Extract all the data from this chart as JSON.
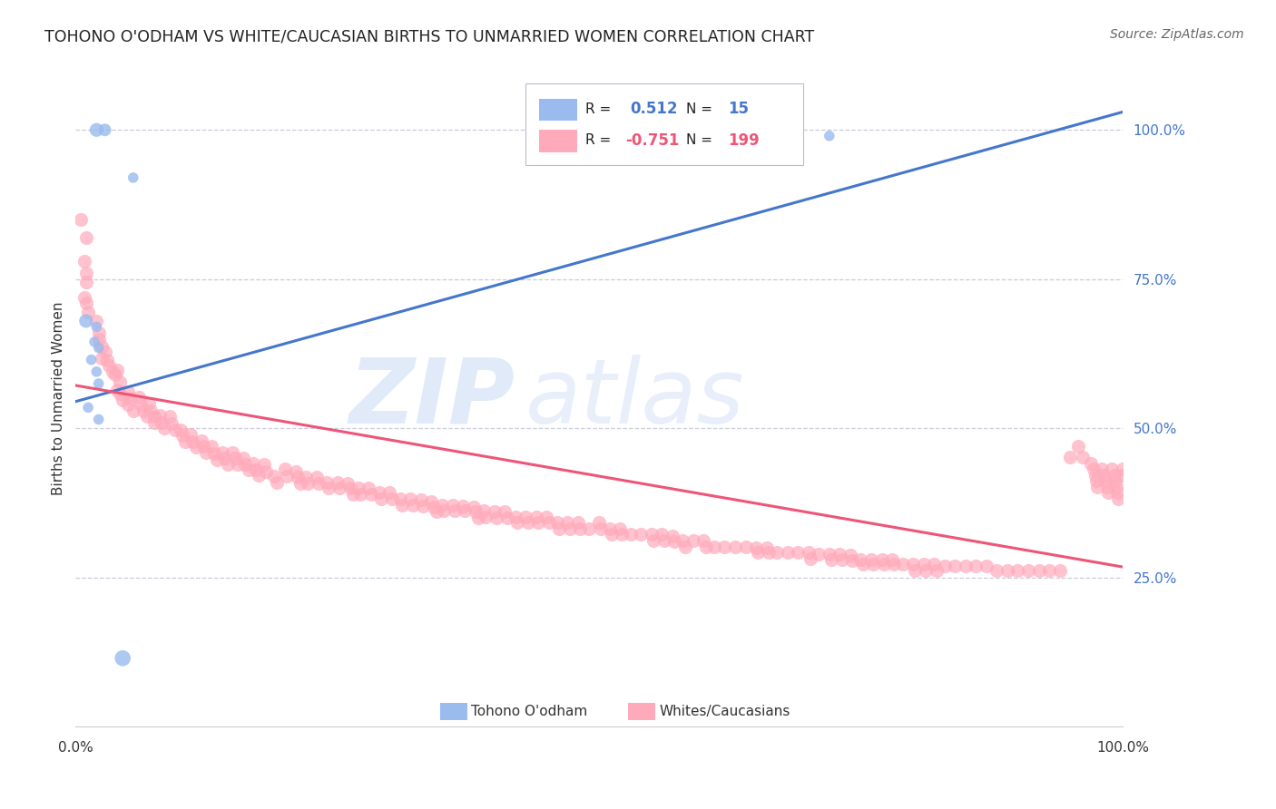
{
  "title": "TOHONO O'ODHAM VS WHITE/CAUCASIAN BIRTHS TO UNMARRIED WOMEN CORRELATION CHART",
  "source": "Source: ZipAtlas.com",
  "ylabel": "Births to Unmarried Women",
  "xlim": [
    0.0,
    1.0
  ],
  "ylim": [
    0.0,
    1.1
  ],
  "ytick_labels_right": [
    "25.0%",
    "50.0%",
    "75.0%",
    "100.0%"
  ],
  "ytick_positions_right": [
    0.25,
    0.5,
    0.75,
    1.0
  ],
  "blue_color": "#99BBEE",
  "pink_color": "#FFAABB",
  "blue_line_color": "#4477CC",
  "pink_line_color": "#EE5577",
  "watermark_zip": "ZIP",
  "watermark_atlas": "atlas",
  "background_color": "#FFFFFF",
  "grid_color": "#CCCCDD",
  "title_color": "#222222",
  "axis_label_color": "#333333",
  "right_tick_color": "#4477CC",
  "tohono_points": [
    [
      0.02,
      1.0
    ],
    [
      0.028,
      1.0
    ],
    [
      0.055,
      0.92
    ],
    [
      0.01,
      0.68
    ],
    [
      0.02,
      0.67
    ],
    [
      0.018,
      0.645
    ],
    [
      0.022,
      0.635
    ],
    [
      0.015,
      0.615
    ],
    [
      0.02,
      0.595
    ],
    [
      0.022,
      0.575
    ],
    [
      0.012,
      0.535
    ],
    [
      0.022,
      0.515
    ],
    [
      0.51,
      0.975
    ],
    [
      0.72,
      0.99
    ],
    [
      0.045,
      0.115
    ]
  ],
  "tohono_sizes": [
    120,
    100,
    70,
    120,
    70,
    70,
    70,
    70,
    70,
    70,
    70,
    70,
    70,
    70,
    160
  ],
  "white_points": [
    [
      0.005,
      0.85
    ],
    [
      0.01,
      0.82
    ],
    [
      0.008,
      0.78
    ],
    [
      0.01,
      0.76
    ],
    [
      0.01,
      0.745
    ],
    [
      0.008,
      0.72
    ],
    [
      0.01,
      0.71
    ],
    [
      0.012,
      0.695
    ],
    [
      0.02,
      0.68
    ],
    [
      0.022,
      0.66
    ],
    [
      0.022,
      0.65
    ],
    [
      0.025,
      0.638
    ],
    [
      0.028,
      0.628
    ],
    [
      0.025,
      0.618
    ],
    [
      0.03,
      0.615
    ],
    [
      0.032,
      0.605
    ],
    [
      0.035,
      0.595
    ],
    [
      0.038,
      0.59
    ],
    [
      0.04,
      0.598
    ],
    [
      0.042,
      0.578
    ],
    [
      0.04,
      0.565
    ],
    [
      0.042,
      0.558
    ],
    [
      0.045,
      0.548
    ],
    [
      0.05,
      0.562
    ],
    [
      0.052,
      0.55
    ],
    [
      0.05,
      0.54
    ],
    [
      0.055,
      0.53
    ],
    [
      0.06,
      0.552
    ],
    [
      0.062,
      0.54
    ],
    [
      0.065,
      0.53
    ],
    [
      0.068,
      0.52
    ],
    [
      0.07,
      0.542
    ],
    [
      0.072,
      0.53
    ],
    [
      0.075,
      0.52
    ],
    [
      0.075,
      0.51
    ],
    [
      0.08,
      0.522
    ],
    [
      0.082,
      0.51
    ],
    [
      0.085,
      0.5
    ],
    [
      0.09,
      0.52
    ],
    [
      0.092,
      0.508
    ],
    [
      0.095,
      0.498
    ],
    [
      0.1,
      0.498
    ],
    [
      0.102,
      0.488
    ],
    [
      0.105,
      0.478
    ],
    [
      0.11,
      0.49
    ],
    [
      0.112,
      0.478
    ],
    [
      0.115,
      0.468
    ],
    [
      0.12,
      0.48
    ],
    [
      0.122,
      0.47
    ],
    [
      0.125,
      0.46
    ],
    [
      0.13,
      0.47
    ],
    [
      0.132,
      0.458
    ],
    [
      0.135,
      0.448
    ],
    [
      0.14,
      0.46
    ],
    [
      0.142,
      0.45
    ],
    [
      0.145,
      0.44
    ],
    [
      0.15,
      0.46
    ],
    [
      0.152,
      0.45
    ],
    [
      0.155,
      0.44
    ],
    [
      0.16,
      0.45
    ],
    [
      0.162,
      0.44
    ],
    [
      0.165,
      0.43
    ],
    [
      0.17,
      0.442
    ],
    [
      0.172,
      0.43
    ],
    [
      0.175,
      0.422
    ],
    [
      0.18,
      0.44
    ],
    [
      0.182,
      0.428
    ],
    [
      0.19,
      0.42
    ],
    [
      0.192,
      0.41
    ],
    [
      0.2,
      0.432
    ],
    [
      0.202,
      0.42
    ],
    [
      0.21,
      0.428
    ],
    [
      0.212,
      0.418
    ],
    [
      0.215,
      0.408
    ],
    [
      0.22,
      0.418
    ],
    [
      0.222,
      0.408
    ],
    [
      0.23,
      0.418
    ],
    [
      0.232,
      0.408
    ],
    [
      0.24,
      0.41
    ],
    [
      0.242,
      0.4
    ],
    [
      0.25,
      0.41
    ],
    [
      0.252,
      0.4
    ],
    [
      0.26,
      0.408
    ],
    [
      0.262,
      0.4
    ],
    [
      0.265,
      0.39
    ],
    [
      0.27,
      0.4
    ],
    [
      0.272,
      0.39
    ],
    [
      0.28,
      0.4
    ],
    [
      0.282,
      0.39
    ],
    [
      0.29,
      0.392
    ],
    [
      0.292,
      0.382
    ],
    [
      0.3,
      0.392
    ],
    [
      0.302,
      0.382
    ],
    [
      0.31,
      0.382
    ],
    [
      0.312,
      0.372
    ],
    [
      0.32,
      0.382
    ],
    [
      0.322,
      0.372
    ],
    [
      0.33,
      0.38
    ],
    [
      0.332,
      0.37
    ],
    [
      0.34,
      0.378
    ],
    [
      0.342,
      0.368
    ],
    [
      0.345,
      0.36
    ],
    [
      0.35,
      0.372
    ],
    [
      0.352,
      0.362
    ],
    [
      0.36,
      0.372
    ],
    [
      0.362,
      0.362
    ],
    [
      0.37,
      0.37
    ],
    [
      0.372,
      0.362
    ],
    [
      0.38,
      0.368
    ],
    [
      0.382,
      0.36
    ],
    [
      0.385,
      0.35
    ],
    [
      0.39,
      0.362
    ],
    [
      0.392,
      0.352
    ],
    [
      0.4,
      0.36
    ],
    [
      0.402,
      0.35
    ],
    [
      0.41,
      0.36
    ],
    [
      0.412,
      0.35
    ],
    [
      0.42,
      0.352
    ],
    [
      0.422,
      0.342
    ],
    [
      0.43,
      0.352
    ],
    [
      0.432,
      0.342
    ],
    [
      0.44,
      0.352
    ],
    [
      0.442,
      0.342
    ],
    [
      0.45,
      0.352
    ],
    [
      0.452,
      0.342
    ],
    [
      0.46,
      0.342
    ],
    [
      0.462,
      0.332
    ],
    [
      0.47,
      0.342
    ],
    [
      0.472,
      0.332
    ],
    [
      0.48,
      0.342
    ],
    [
      0.482,
      0.332
    ],
    [
      0.49,
      0.332
    ],
    [
      0.5,
      0.342
    ],
    [
      0.502,
      0.332
    ],
    [
      0.51,
      0.332
    ],
    [
      0.512,
      0.322
    ],
    [
      0.52,
      0.332
    ],
    [
      0.522,
      0.322
    ],
    [
      0.53,
      0.322
    ],
    [
      0.54,
      0.322
    ],
    [
      0.55,
      0.322
    ],
    [
      0.552,
      0.312
    ],
    [
      0.56,
      0.322
    ],
    [
      0.562,
      0.312
    ],
    [
      0.57,
      0.32
    ],
    [
      0.572,
      0.31
    ],
    [
      0.58,
      0.312
    ],
    [
      0.582,
      0.302
    ],
    [
      0.59,
      0.312
    ],
    [
      0.6,
      0.312
    ],
    [
      0.602,
      0.302
    ],
    [
      0.61,
      0.302
    ],
    [
      0.62,
      0.302
    ],
    [
      0.63,
      0.302
    ],
    [
      0.64,
      0.302
    ],
    [
      0.65,
      0.3
    ],
    [
      0.652,
      0.292
    ],
    [
      0.66,
      0.3
    ],
    [
      0.662,
      0.292
    ],
    [
      0.67,
      0.292
    ],
    [
      0.68,
      0.292
    ],
    [
      0.69,
      0.292
    ],
    [
      0.7,
      0.292
    ],
    [
      0.702,
      0.282
    ],
    [
      0.71,
      0.29
    ],
    [
      0.72,
      0.29
    ],
    [
      0.722,
      0.28
    ],
    [
      0.73,
      0.29
    ],
    [
      0.732,
      0.28
    ],
    [
      0.74,
      0.288
    ],
    [
      0.742,
      0.278
    ],
    [
      0.75,
      0.28
    ],
    [
      0.752,
      0.272
    ],
    [
      0.76,
      0.28
    ],
    [
      0.762,
      0.272
    ],
    [
      0.77,
      0.28
    ],
    [
      0.772,
      0.272
    ],
    [
      0.78,
      0.28
    ],
    [
      0.782,
      0.272
    ],
    [
      0.79,
      0.272
    ],
    [
      0.8,
      0.272
    ],
    [
      0.802,
      0.262
    ],
    [
      0.81,
      0.272
    ],
    [
      0.812,
      0.262
    ],
    [
      0.82,
      0.272
    ],
    [
      0.822,
      0.262
    ],
    [
      0.83,
      0.27
    ],
    [
      0.84,
      0.27
    ],
    [
      0.85,
      0.27
    ],
    [
      0.86,
      0.27
    ],
    [
      0.87,
      0.27
    ],
    [
      0.88,
      0.262
    ],
    [
      0.89,
      0.262
    ],
    [
      0.9,
      0.262
    ],
    [
      0.91,
      0.262
    ],
    [
      0.92,
      0.262
    ],
    [
      0.93,
      0.262
    ],
    [
      0.94,
      0.262
    ],
    [
      0.95,
      0.452
    ],
    [
      0.958,
      0.47
    ],
    [
      0.962,
      0.452
    ],
    [
      0.97,
      0.442
    ],
    [
      0.972,
      0.432
    ],
    [
      0.974,
      0.422
    ],
    [
      0.975,
      0.412
    ],
    [
      0.976,
      0.402
    ],
    [
      0.98,
      0.432
    ],
    [
      0.982,
      0.422
    ],
    [
      0.984,
      0.412
    ],
    [
      0.985,
      0.402
    ],
    [
      0.986,
      0.392
    ],
    [
      0.99,
      0.432
    ],
    [
      0.992,
      0.422
    ],
    [
      0.993,
      0.412
    ],
    [
      0.994,
      0.402
    ],
    [
      0.995,
      0.392
    ],
    [
      0.996,
      0.382
    ],
    [
      1.0,
      0.432
    ],
    [
      1.0,
      0.422
    ]
  ],
  "blue_line_x": [
    0.0,
    1.0
  ],
  "blue_line_y": [
    0.545,
    1.03
  ],
  "pink_line_x": [
    0.0,
    1.0
  ],
  "pink_line_y": [
    0.572,
    0.268
  ]
}
